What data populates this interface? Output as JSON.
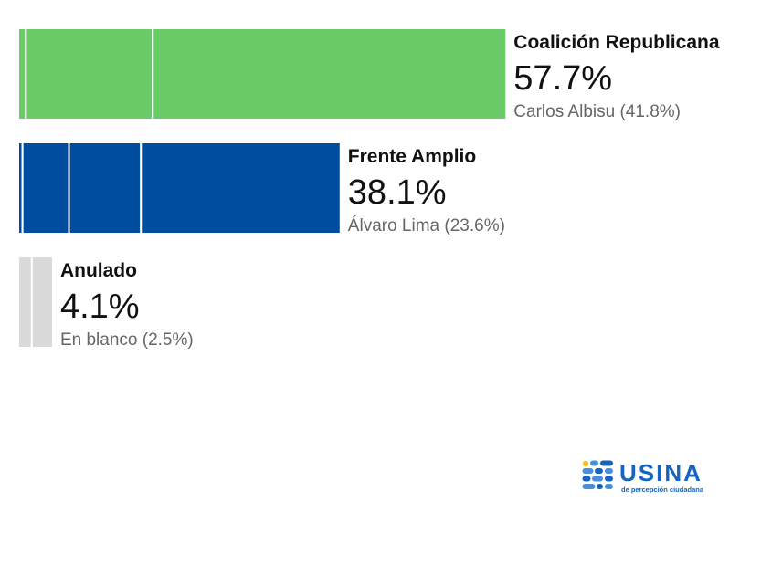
{
  "chart_data": {
    "type": "bar",
    "orientation": "horizontal",
    "stacked_segments": true,
    "xlim": [
      0,
      100
    ],
    "grid": false,
    "legend": "none",
    "rows": [
      {
        "label": "Coalición Republicana",
        "value": 57.7,
        "value_label": "57.7%",
        "detail": "Carlos Albisu (41.8%)",
        "color": "#6bcb66",
        "segments": [
          0.9,
          15.0,
          41.8
        ]
      },
      {
        "label": "Frente Amplio",
        "value": 38.1,
        "value_label": "38.1%",
        "detail": "Álvaro Lima (23.6%)",
        "color": "#004d9f",
        "segments": [
          0.5,
          5.5,
          8.5,
          23.6
        ]
      },
      {
        "label": "Anulado",
        "value": 4.1,
        "value_label": "4.1%",
        "detail": "En blanco (2.5%)",
        "color": "#dadada",
        "segments": [
          1.6,
          2.5
        ]
      }
    ]
  },
  "logo": {
    "word": "USINA",
    "tagline": "de percepción ciudadana",
    "colors": {
      "accent": "#1565c0",
      "dot": "#f5c518",
      "light": "#4a90d9"
    }
  }
}
